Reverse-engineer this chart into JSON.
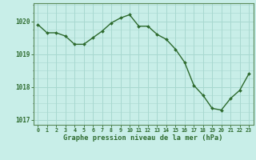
{
  "x": [
    0,
    1,
    2,
    3,
    4,
    5,
    6,
    7,
    8,
    9,
    10,
    11,
    12,
    13,
    14,
    15,
    16,
    17,
    18,
    19,
    20,
    21,
    22,
    23
  ],
  "y": [
    1019.9,
    1019.65,
    1019.65,
    1019.55,
    1019.3,
    1019.3,
    1019.5,
    1019.7,
    1019.95,
    1020.1,
    1020.2,
    1019.85,
    1019.85,
    1019.6,
    1019.45,
    1019.15,
    1018.75,
    1018.05,
    1017.75,
    1017.35,
    1017.3,
    1017.65,
    1017.9,
    1018.4
  ],
  "line_color": "#2d6a2d",
  "marker_color": "#2d6a2d",
  "bg_color": "#c8eee8",
  "grid_color_major": "#a8d8d0",
  "xlabel": "Graphe pression niveau de la mer (hPa)",
  "xlabel_color": "#2d6a2d",
  "tick_color": "#2d6a2d",
  "axis_color": "#5a8a5a",
  "ylim": [
    1016.85,
    1020.55
  ],
  "yticks": [
    1017,
    1018,
    1019,
    1020
  ],
  "xlim": [
    -0.5,
    23.5
  ],
  "xticks": [
    0,
    1,
    2,
    3,
    4,
    5,
    6,
    7,
    8,
    9,
    10,
    11,
    12,
    13,
    14,
    15,
    16,
    17,
    18,
    19,
    20,
    21,
    22,
    23
  ]
}
